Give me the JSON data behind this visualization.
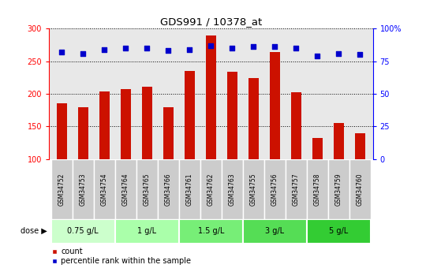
{
  "title": "GDS991 / 10378_at",
  "samples": [
    "GSM34752",
    "GSM34753",
    "GSM34754",
    "GSM34764",
    "GSM34765",
    "GSM34766",
    "GSM34761",
    "GSM34762",
    "GSM34763",
    "GSM34755",
    "GSM34756",
    "GSM34757",
    "GSM34758",
    "GSM34759",
    "GSM34760"
  ],
  "counts": [
    185,
    180,
    204,
    207,
    211,
    179,
    235,
    290,
    234,
    224,
    264,
    202,
    133,
    155,
    140
  ],
  "percentile": [
    82,
    81,
    84,
    85,
    85,
    83,
    84,
    87,
    85,
    86,
    86,
    85,
    79,
    81,
    80
  ],
  "dose_groups": [
    {
      "label": "0.75 g/L",
      "start": 0,
      "end": 3,
      "color": "#ccffcc"
    },
    {
      "label": "1 g/L",
      "start": 3,
      "end": 6,
      "color": "#aaffaa"
    },
    {
      "label": "1.5 g/L",
      "start": 6,
      "end": 9,
      "color": "#77ee77"
    },
    {
      "label": "3 g/L",
      "start": 9,
      "end": 12,
      "color": "#55dd55"
    },
    {
      "label": "5 g/L",
      "start": 12,
      "end": 15,
      "color": "#33cc33"
    }
  ],
  "ylim_left": [
    100,
    300
  ],
  "ylim_right": [
    0,
    100
  ],
  "yticks_left": [
    100,
    150,
    200,
    250,
    300
  ],
  "yticks_right": [
    0,
    25,
    50,
    75,
    100
  ],
  "bar_color": "#cc1100",
  "dot_color": "#0000cc",
  "bar_width": 0.5,
  "plot_bg": "#e8e8e8",
  "label_bg": "#cccccc",
  "dose_label": "dose",
  "legend_count": "count",
  "legend_percentile": "percentile rank within the sample",
  "right_top_label": "100%"
}
